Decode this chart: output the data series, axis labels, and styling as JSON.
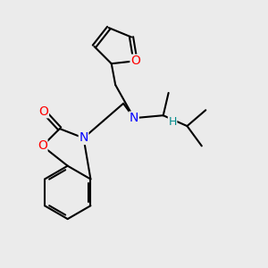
{
  "bg_color": "#ebebeb",
  "atom_colors": {
    "N": "#0000ff",
    "O": "#ff0000",
    "H": "#008b8b",
    "C": "#000000"
  },
  "bond_color": "#000000",
  "bond_width": 1.5,
  "font_size_atom": 10,
  "font_size_H": 9
}
